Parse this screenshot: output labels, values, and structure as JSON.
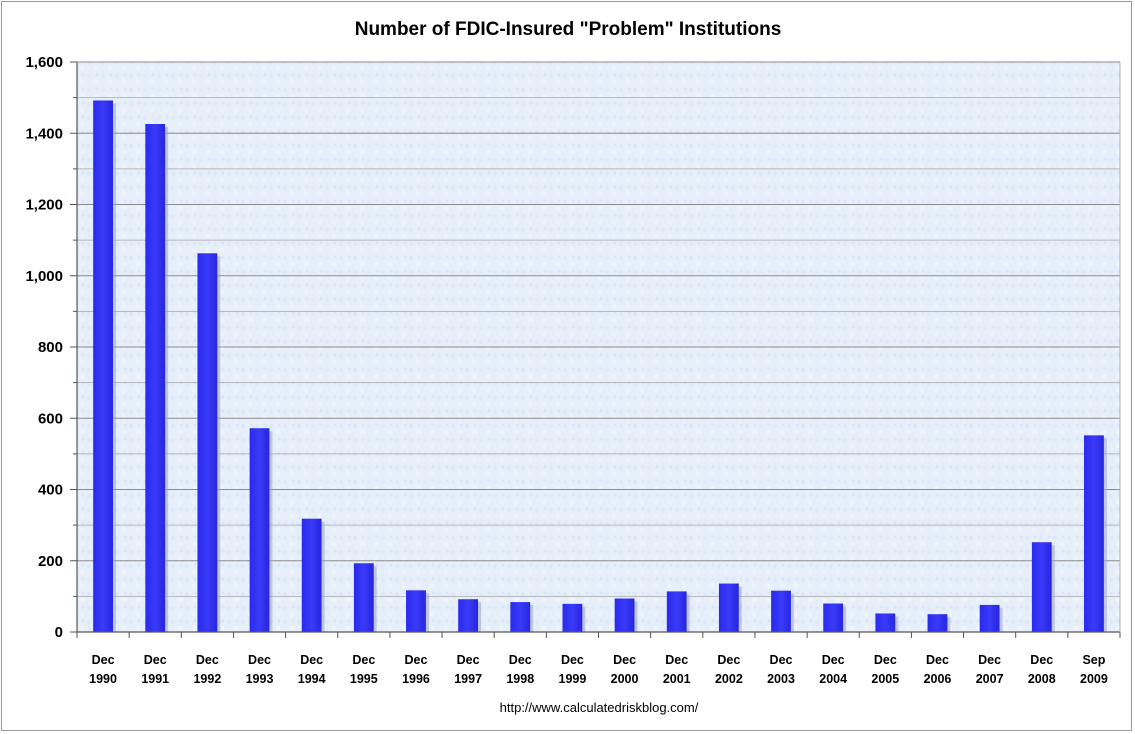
{
  "chart_data": {
    "type": "bar",
    "title": "Number of FDIC-Insured \"Problem\" Institutions",
    "xlabel": "",
    "ylabel": "",
    "categories": [
      [
        "Dec",
        "1990"
      ],
      [
        "Dec",
        "1991"
      ],
      [
        "Dec",
        "1992"
      ],
      [
        "Dec",
        "1993"
      ],
      [
        "Dec",
        "1994"
      ],
      [
        "Dec",
        "1995"
      ],
      [
        "Dec",
        "1996"
      ],
      [
        "Dec",
        "1997"
      ],
      [
        "Dec",
        "1998"
      ],
      [
        "Dec",
        "1999"
      ],
      [
        "Dec",
        "2000"
      ],
      [
        "Dec",
        "2001"
      ],
      [
        "Dec",
        "2002"
      ],
      [
        "Dec",
        "2003"
      ],
      [
        "Dec",
        "2004"
      ],
      [
        "Dec",
        "2005"
      ],
      [
        "Dec",
        "2006"
      ],
      [
        "Dec",
        "2007"
      ],
      [
        "Dec",
        "2008"
      ],
      [
        "Sep",
        "2009"
      ]
    ],
    "values": [
      1492,
      1426,
      1063,
      572,
      318,
      193,
      117,
      92,
      84,
      79,
      94,
      114,
      136,
      116,
      80,
      52,
      50,
      76,
      252,
      552
    ],
    "ylim": [
      0,
      1600
    ],
    "yticks": [
      0,
      200,
      400,
      600,
      800,
      1000,
      1200,
      1400,
      1600
    ],
    "ytick_labels": [
      "0",
      "200",
      "400",
      "600",
      "800",
      "1,000",
      "1,200",
      "1,400",
      "1,600"
    ],
    "grid": true,
    "bar_color": "#3535f5",
    "plot_background": "#e8f0fb",
    "source_text": "http://www.calculatedriskblog.com/"
  }
}
